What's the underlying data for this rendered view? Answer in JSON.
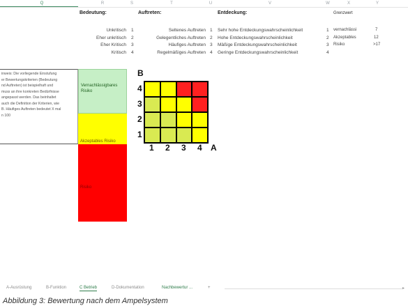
{
  "columns": [
    "Q",
    "R",
    "S",
    "T",
    "U",
    "V",
    "W",
    "X",
    "Y"
  ],
  "headers": {
    "bedeutung": "Bedeutung:",
    "auftreten": "Auftreten:",
    "entdeckung": "Entdeckung:",
    "grenzwert": "Grenzwert"
  },
  "bedeutung": [
    {
      "label": "Unkritisch",
      "n": "1"
    },
    {
      "label": "Eher unkritisch",
      "n": "2"
    },
    {
      "label": "Eher Kritisch",
      "n": "3"
    },
    {
      "label": "Kritisch",
      "n": "4"
    }
  ],
  "auftreten": [
    {
      "label": "Seltenes Auftreten",
      "n": "1"
    },
    {
      "label": "Gelegentliches Auftreten",
      "n": "2"
    },
    {
      "label": "Häufiges Auftreten",
      "n": "3"
    },
    {
      "label": "Regelmäßiges Auftreten",
      "n": "4"
    }
  ],
  "entdeckung": [
    {
      "label": "Sehr hohe Entdeckungswahrscheinlichkeit",
      "n": "1"
    },
    {
      "label": "Hohe Entdeckungswahrscheinlichkeit",
      "n": "2"
    },
    {
      "label": "Mäßige Entdeckungswahrscheinlichkeit",
      "n": "3"
    },
    {
      "label": "Geringe Entdeckungswahrscheinlichkeit",
      "n": "4"
    }
  ],
  "grenzwerte": [
    {
      "label": "vernachlässi",
      "value": "7"
    },
    {
      "label": "Akzeptables",
      "value": "12"
    },
    {
      "label": "Risiko",
      "value": ">17"
    }
  ],
  "info": {
    "lines": [
      "inweis: Die vorliegende Einstufung",
      "er Bewertungskriterien (Bedeutung",
      "nd Auftreten) ist beispielhaft und",
      "muss an ihre konkreten Bedürfnisse",
      "angepasst werden. Das beinhaltet",
      "auch die Definition der Kriterien, wie",
      "B. Häufiges Auftreten bedeutet X mal",
      "n 100"
    ]
  },
  "bands": {
    "green": {
      "label_line1": "Vernachlässigbares",
      "label_line2": "Risiko",
      "color": "#c6efc6"
    },
    "yellow": {
      "label": "Akzeptables Risiko",
      "color": "#ffff00"
    },
    "red": {
      "label": "Risiko",
      "color": "#ff0000"
    }
  },
  "matrix": {
    "axis_b": "B",
    "axis_a": "A",
    "row_labels": [
      "4",
      "3",
      "2",
      "1"
    ],
    "col_labels": [
      "1",
      "2",
      "3",
      "4"
    ],
    "colors": {
      "green": "#d9ea52",
      "yellow": "#ffff00",
      "red": "#ff2020"
    },
    "cells": [
      [
        "yellow",
        "yellow",
        "red",
        "red"
      ],
      [
        "green",
        "yellow",
        "yellow",
        "red"
      ],
      [
        "green",
        "green",
        "yellow",
        "yellow"
      ],
      [
        "green",
        "green",
        "green",
        "yellow"
      ]
    ]
  },
  "tabs": [
    {
      "label": "A-Ausrüstung",
      "active": false
    },
    {
      "label": "B-Funktion",
      "active": false
    },
    {
      "label": "C Betrieb",
      "active": true
    },
    {
      "label": "D-Dokumentation",
      "active": false
    },
    {
      "label": "Nachbewertur ...",
      "active": false
    }
  ],
  "tab_add": "+",
  "caption": "Abbildung 3: Bewertung nach dem Ampelsystem"
}
